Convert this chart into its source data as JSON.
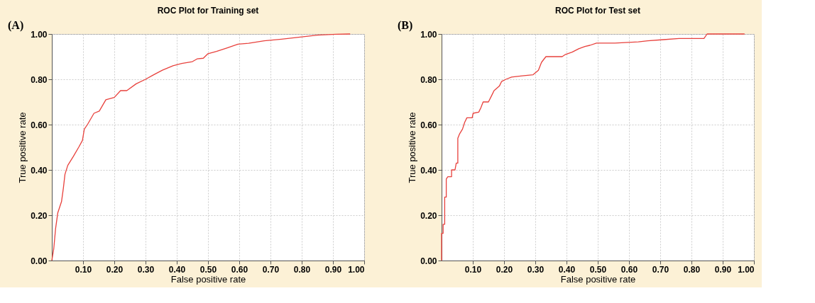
{
  "chart_data": [
    {
      "type": "line",
      "title": "ROC Plot for Training set",
      "xlabel": "False positive rate",
      "ylabel": "True positive rate",
      "annotations": [
        "(A)"
      ],
      "xlim": [
        0,
        1
      ],
      "ylim": [
        0,
        1
      ],
      "xticks": [
        {
          "value": 0.1,
          "label": "0.10"
        },
        {
          "value": 0.2,
          "label": "0.20"
        },
        {
          "value": 0.3,
          "label": "0.30"
        },
        {
          "value": 0.4,
          "label": "0.40"
        },
        {
          "value": 0.5,
          "label": "0.50"
        },
        {
          "value": 0.6,
          "label": "0.60"
        },
        {
          "value": 0.7,
          "label": "0.70"
        },
        {
          "value": 0.8,
          "label": "0.80"
        },
        {
          "value": 0.9,
          "label": "0.90"
        },
        {
          "value": 1,
          "label": "1.00"
        }
      ],
      "yticks": [
        {
          "value": 0,
          "label": "0.00"
        },
        {
          "value": 0.2,
          "label": "0.20"
        },
        {
          "value": 0.4,
          "label": "0.40"
        },
        {
          "value": 0.6,
          "label": "0.60"
        },
        {
          "value": 0.8,
          "label": "0.80"
        },
        {
          "value": 1,
          "label": "1.00"
        }
      ],
      "grid": true,
      "series": [
        {
          "color": "#e8413c",
          "x": [
            0,
            0.006,
            0.012,
            0.019,
            0.031,
            0.037,
            0.042,
            0.051,
            0.069,
            0.086,
            0.098,
            0.104,
            0.114,
            0.135,
            0.152,
            0.173,
            0.2,
            0.22,
            0.24,
            0.27,
            0.3,
            0.326,
            0.354,
            0.388,
            0.416,
            0.45,
            0.465,
            0.485,
            0.5,
            0.527,
            0.56,
            0.596,
            0.63,
            0.68,
            0.735,
            0.8,
            0.85,
            0.91,
            0.955
          ],
          "values": [
            0,
            0.05,
            0.14,
            0.21,
            0.26,
            0.32,
            0.38,
            0.42,
            0.46,
            0.5,
            0.53,
            0.58,
            0.6,
            0.65,
            0.66,
            0.71,
            0.72,
            0.75,
            0.75,
            0.78,
            0.8,
            0.82,
            0.84,
            0.86,
            0.87,
            0.878,
            0.89,
            0.893,
            0.913,
            0.923,
            0.938,
            0.955,
            0.959,
            0.97,
            0.977,
            0.987,
            0.995,
            0.999,
            1
          ]
        }
      ]
    },
    {
      "type": "line",
      "title": "ROC Plot for Test set",
      "xlabel": "False positive rate",
      "ylabel": "True positive rate",
      "annotations": [
        "(B)"
      ],
      "xlim": [
        0,
        1
      ],
      "ylim": [
        0,
        1
      ],
      "xticks": [
        {
          "value": 0.1,
          "label": "0.10"
        },
        {
          "value": 0.2,
          "label": "0.20"
        },
        {
          "value": 0.3,
          "label": "0.30"
        },
        {
          "value": 0.4,
          "label": "0.40"
        },
        {
          "value": 0.5,
          "label": "0.50"
        },
        {
          "value": 0.6,
          "label": "0.60"
        },
        {
          "value": 0.7,
          "label": "0.70"
        },
        {
          "value": 0.8,
          "label": "0.80"
        },
        {
          "value": 0.9,
          "label": "0.90"
        },
        {
          "value": 1,
          "label": "1.00"
        }
      ],
      "yticks": [
        {
          "value": 0,
          "label": "0.00"
        },
        {
          "value": 0.2,
          "label": "0.20"
        },
        {
          "value": 0.4,
          "label": "0.40"
        },
        {
          "value": 0.6,
          "label": "0.60"
        },
        {
          "value": 0.8,
          "label": "0.80"
        },
        {
          "value": 1,
          "label": "1.00"
        }
      ],
      "grid": true,
      "series": [
        {
          "color": "#e8413c",
          "x": [
            0,
            0,
            0.005,
            0.005,
            0.01,
            0.01,
            0.015,
            0.015,
            0.02,
            0.032,
            0.032,
            0.043,
            0.047,
            0.052,
            0.052,
            0.058,
            0.067,
            0.074,
            0.081,
            0.098,
            0.101,
            0.119,
            0.126,
            0.133,
            0.15,
            0.161,
            0.168,
            0.185,
            0.192,
            0.206,
            0.224,
            0.258,
            0.293,
            0.31,
            0.32,
            0.334,
            0.386,
            0.397,
            0.418,
            0.439,
            0.459,
            0.475,
            0.496,
            0.555,
            0.63,
            0.66,
            0.71,
            0.76,
            0.84,
            0.85,
            0.97
          ],
          "values": [
            0,
            0.12,
            0.12,
            0.16,
            0.16,
            0.28,
            0.28,
            0.36,
            0.37,
            0.37,
            0.4,
            0.4,
            0.43,
            0.43,
            0.54,
            0.56,
            0.58,
            0.61,
            0.63,
            0.63,
            0.65,
            0.655,
            0.675,
            0.7,
            0.7,
            0.73,
            0.75,
            0.77,
            0.79,
            0.8,
            0.81,
            0.815,
            0.82,
            0.84,
            0.875,
            0.9,
            0.9,
            0.91,
            0.92,
            0.935,
            0.945,
            0.95,
            0.96,
            0.96,
            0.965,
            0.97,
            0.975,
            0.98,
            0.98,
            1,
            1
          ]
        }
      ]
    }
  ]
}
